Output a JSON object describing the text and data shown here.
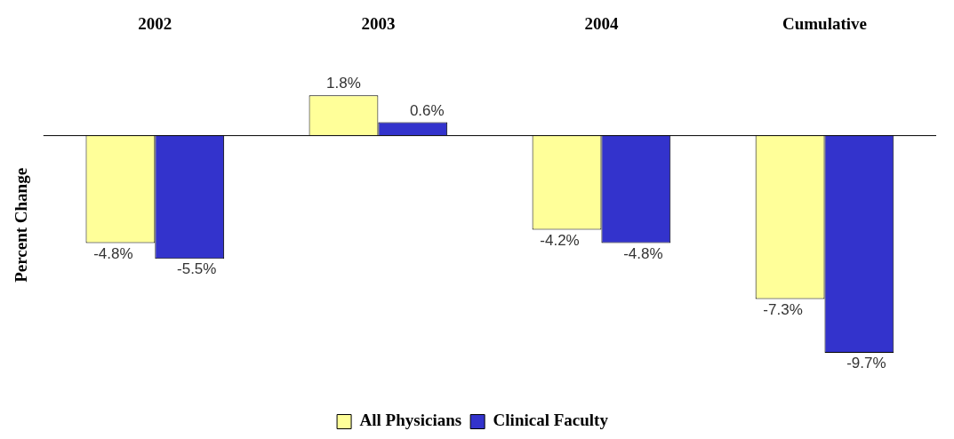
{
  "chart_data": {
    "type": "bar",
    "ylabel": "Percent Change",
    "categories": [
      "2002",
      "2003",
      "2004",
      "Cumulative"
    ],
    "series": [
      {
        "name": "All Physicians",
        "color": "#ffff99",
        "values": [
          -4.8,
          1.8,
          -4.2,
          -7.3
        ],
        "value_labels": [
          "-4.8%",
          "1.8%",
          "-4.2%",
          "-7.3%"
        ]
      },
      {
        "name": "Clinical Faculty",
        "color": "#3333cc",
        "values": [
          -5.5,
          0.6,
          -4.8,
          -9.7
        ],
        "value_labels": [
          "-5.5%",
          "0.6%",
          "-4.8%",
          "-9.7%"
        ]
      }
    ],
    "legend": "bottom",
    "grid": false,
    "tick_labels": "x"
  }
}
